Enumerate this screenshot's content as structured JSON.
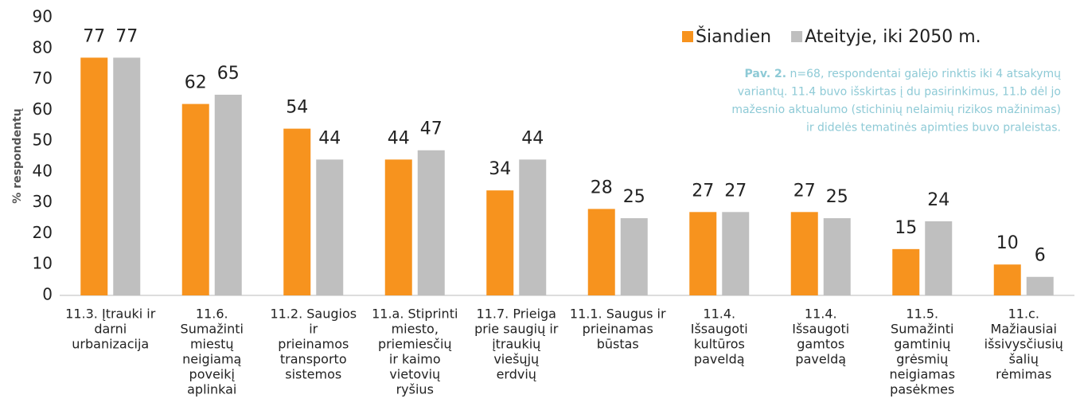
{
  "chart_data": {
    "type": "bar",
    "y_label": "% respondentų",
    "categories": [
      [
        "11.3. Įtrauki ir",
        "darni",
        "urbanizacija"
      ],
      [
        "11.6.",
        "Sumažinti",
        "miestų",
        "neigiamą",
        "poveikį",
        "aplinkai"
      ],
      [
        "11.2. Saugios",
        "ir",
        "prieinamos",
        "transporto",
        "sistemos"
      ],
      [
        "11.a. Stiprinti",
        "miesto,",
        "priemiesčių",
        "ir kaimo",
        "vietovių",
        "ryšius"
      ],
      [
        "11.7. Prieiga",
        "prie saugių ir",
        "įtraukių",
        "viešųjų",
        "erdvių"
      ],
      [
        "11.1. Saugus ir",
        "prieinamas",
        "būstas"
      ],
      [
        "11.4.",
        "Išsaugoti",
        "kultūros",
        "paveldą"
      ],
      [
        "11.4.",
        "Išsaugoti",
        "gamtos",
        "paveldą"
      ],
      [
        "11.5.",
        "Sumažinti",
        "gamtinių",
        "grėsmių",
        "neigiamas",
        "pasėkmes"
      ],
      [
        "11.c.",
        "Mažiausiai",
        "išsivysčiusių",
        "šalių",
        "rėmimas"
      ]
    ],
    "series": [
      {
        "name": "Šiandien",
        "color": "#f7931e",
        "values": [
          77,
          62,
          54,
          44,
          34,
          28,
          27,
          27,
          15,
          10
        ]
      },
      {
        "name": "Ateityje, iki 2050 m.",
        "color": "#bfbfbf",
        "values": [
          77,
          65,
          44,
          47,
          44,
          25,
          27,
          25,
          24,
          6
        ]
      }
    ],
    "ylim": [
      0,
      90
    ],
    "yticks": [
      0,
      10,
      20,
      30,
      40,
      50,
      60,
      70,
      80,
      90
    ],
    "legend": "top-right",
    "note": {
      "label": "Pav. 2.",
      "lines": [
        " n=68, respondentai galėjo rinktis iki 4 atsakymų",
        "variantų. 11.4 buvo išskirtas į du pasirinkimus, 11.b dėl jo",
        "mažesnio aktualumo (stichinių nelaimių rizikos mažinimas)",
        "ir didelės tematinės apimties buvo praleistas."
      ]
    }
  }
}
